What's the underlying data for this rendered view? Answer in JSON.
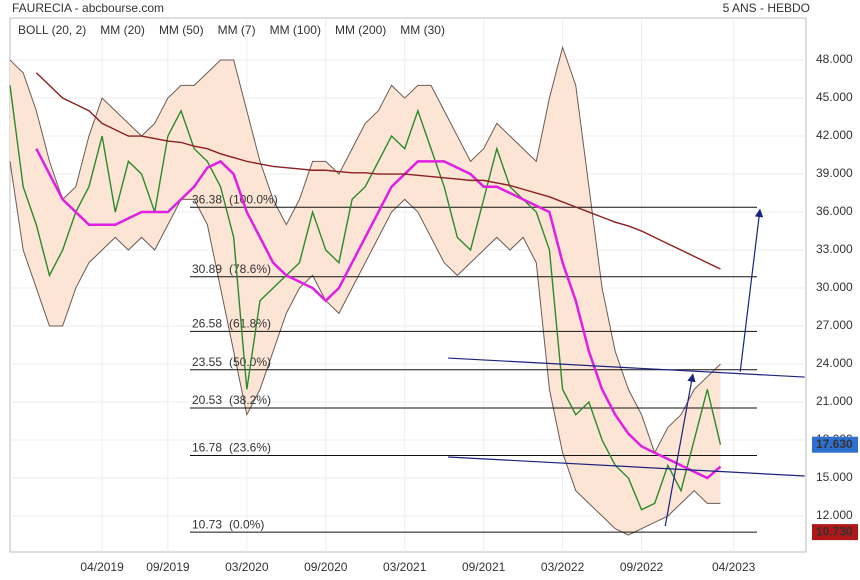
{
  "chart_data": {
    "type": "line",
    "title": "FAURECIA - abcbourse.com",
    "subtitle": "5 ANS - HEBDO",
    "legend": [
      {
        "name": "BOLL (20, 2)",
        "color": "#777777"
      },
      {
        "name": "MM (20)",
        "color": "#3a6fd8"
      },
      {
        "name": "MM (50)",
        "color": "#d03030"
      },
      {
        "name": "MM (7)",
        "color": "#2a9a2a"
      },
      {
        "name": "MM (100)",
        "color": "#e07020"
      },
      {
        "name": "MM (200)",
        "color": "#8b2020"
      },
      {
        "name": "MM (30)",
        "color": "#e020e0"
      }
    ],
    "x": [
      0,
      1,
      2,
      3,
      4,
      5,
      6,
      7,
      8,
      9,
      10,
      11,
      12,
      13,
      14,
      15,
      16,
      17,
      18,
      19,
      20,
      21,
      22,
      23,
      24,
      25,
      26,
      27,
      28,
      29,
      30,
      31,
      32,
      33,
      34,
      35,
      36,
      37,
      38,
      39,
      40,
      41,
      42,
      43,
      44,
      45,
      46,
      47,
      48,
      49,
      50,
      51,
      52,
      53,
      54
    ],
    "bands": {
      "color": "#fde5d6",
      "edge": "#6b5b55",
      "upper": [
        48,
        47,
        44,
        40,
        37,
        38,
        42,
        45,
        44,
        43,
        42,
        43,
        45,
        46,
        46,
        47,
        48,
        48,
        44,
        40,
        37,
        35,
        37,
        40,
        40,
        39,
        41,
        43,
        44,
        46,
        45,
        46,
        46,
        44,
        42,
        40,
        41,
        43,
        42,
        41,
        40,
        45,
        49,
        46,
        38,
        30,
        25,
        22,
        20,
        17,
        19,
        20,
        22,
        23,
        24
      ],
      "lower": [
        40,
        33,
        30,
        27,
        27,
        30,
        32,
        33,
        34,
        33,
        34,
        33,
        35,
        37,
        37,
        35,
        30,
        25,
        20,
        22,
        25,
        28,
        30,
        31,
        29,
        28,
        30,
        32,
        34,
        36,
        37,
        36,
        34,
        32,
        31,
        32,
        33,
        34,
        33,
        34,
        32,
        22,
        17,
        14,
        13,
        12,
        11,
        10.5,
        11,
        11.5,
        12,
        13,
        14,
        13,
        13
      ]
    },
    "series": [
      {
        "name": "FAURECIA",
        "color": "#2a8a2a",
        "values": [
          46,
          38,
          35,
          31,
          33,
          36,
          38,
          42,
          36,
          40,
          39,
          36,
          42,
          44,
          41,
          40,
          38,
          34,
          22,
          29,
          30,
          31,
          32,
          36,
          33,
          32,
          37,
          38,
          40,
          42,
          41,
          44,
          41,
          38,
          34,
          33,
          37,
          41,
          38,
          37,
          36,
          33,
          22,
          20,
          21,
          18,
          16,
          15,
          12.5,
          13,
          16,
          14,
          18,
          22,
          17.63
        ]
      },
      {
        "name": "MM (30)",
        "color": "#e020e0",
        "values": [
          null,
          null,
          41,
          39,
          37,
          36,
          35,
          35,
          35,
          35.5,
          36,
          36,
          36,
          37,
          38,
          39.5,
          40,
          39,
          36,
          34,
          32,
          31,
          30.5,
          30,
          29,
          30,
          32,
          34,
          36,
          38,
          39,
          40,
          40,
          40,
          39.5,
          39,
          38,
          38,
          37.5,
          37,
          36.5,
          36,
          32,
          29,
          25,
          22,
          20,
          18.5,
          17.5,
          17,
          16.5,
          16,
          15.5,
          15,
          15.9
        ]
      },
      {
        "name": "MM (200)",
        "color": "#8b2020",
        "values": [
          null,
          null,
          47,
          46,
          45,
          44.5,
          44,
          43,
          42.5,
          42,
          42,
          41.8,
          41.6,
          41.5,
          41.2,
          41,
          40.6,
          40.3,
          40,
          39.8,
          39.6,
          39.5,
          39.4,
          39.3,
          39.3,
          39.2,
          39.1,
          39.1,
          39,
          39,
          39,
          38.9,
          38.8,
          38.7,
          38.6,
          38.5,
          38.5,
          38.3,
          38.1,
          37.8,
          37.5,
          37.2,
          36.8,
          36.4,
          36,
          35.6,
          35.2,
          34.9,
          34.5,
          34,
          33.5,
          33,
          32.5,
          32,
          31.5
        ]
      }
    ],
    "levels": [
      {
        "value": 36.38,
        "pct": "(100.0%)"
      },
      {
        "value": 30.89,
        "pct": "(78.6%)"
      },
      {
        "value": 26.58,
        "pct": "(61.8%)"
      },
      {
        "value": 23.55,
        "pct": "(50.0%)"
      },
      {
        "value": 20.53,
        "pct": "(38.2%)"
      },
      {
        "value": 16.78,
        "pct": "(23.6%)"
      },
      {
        "value": 10.73,
        "pct": "(0.0%)"
      }
    ],
    "trendlines": [
      {
        "x": [
          33.3,
          60.4
        ],
        "y": [
          24.47,
          22.97
        ],
        "color": "#1a237e"
      },
      {
        "x": [
          33.3,
          60.4
        ],
        "y": [
          16.66,
          15.16
        ],
        "color": "#1a237e"
      },
      {
        "x": [
          49.8,
          51.9
        ],
        "y": [
          11.2,
          23.2
        ],
        "color": "#1a237e",
        "arrow": true
      },
      {
        "x": [
          55.5,
          57
        ],
        "y": [
          23.4,
          36.2
        ],
        "color": "#1a237e",
        "arrow": true
      }
    ],
    "badges": [
      {
        "value": 17.63,
        "label": "17.630",
        "color": "#2f6fd0"
      },
      {
        "value": 10.73,
        "label": "10.730",
        "color": "#b01818"
      }
    ],
    "xlim": [
      0,
      60.5
    ],
    "ylim": [
      9.16,
      51.32
    ],
    "xticks": [
      {
        "value": 7,
        "label": "04/2019"
      },
      {
        "value": 12,
        "label": "09/2019"
      },
      {
        "value": 18,
        "label": "03/2020"
      },
      {
        "value": 24,
        "label": "09/2020"
      },
      {
        "value": 30,
        "label": "03/2021"
      },
      {
        "value": 36,
        "label": "09/2021"
      },
      {
        "value": 42,
        "label": "03/2022"
      },
      {
        "value": 48,
        "label": "09/2022"
      },
      {
        "value": 55,
        "label": "04/2023"
      }
    ],
    "yticks": [
      {
        "value": 12,
        "label": "12.000"
      },
      {
        "value": 15,
        "label": "15.000"
      },
      {
        "value": 18,
        "label": "18.000"
      },
      {
        "value": 21,
        "label": "21.000"
      },
      {
        "value": 24,
        "label": "24.000"
      },
      {
        "value": 27,
        "label": "27.000"
      },
      {
        "value": 30,
        "label": "30.000"
      },
      {
        "value": 33,
        "label": "33.000"
      },
      {
        "value": 36,
        "label": "36.000"
      },
      {
        "value": 39,
        "label": "39.000"
      },
      {
        "value": 42,
        "label": "42.000"
      },
      {
        "value": 45,
        "label": "45.000"
      },
      {
        "value": 48,
        "label": "48.000"
      }
    ],
    "grid": true
  }
}
